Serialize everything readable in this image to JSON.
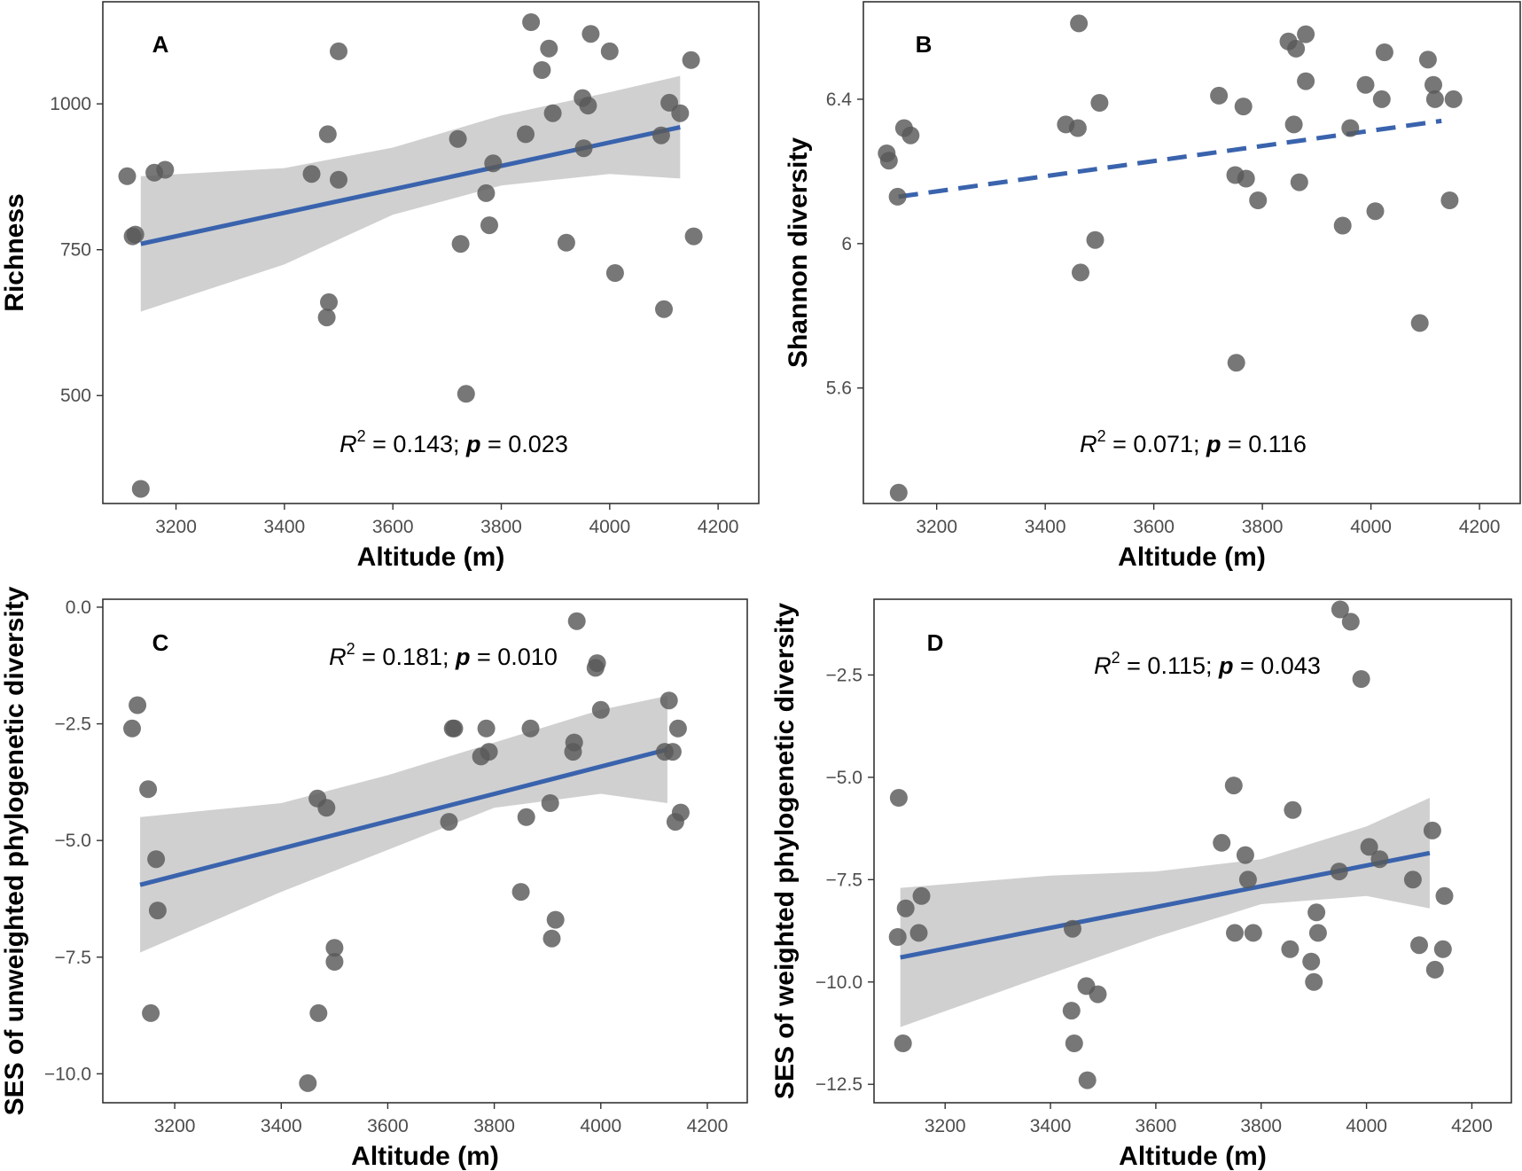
{
  "colors": {
    "point": "#595959",
    "line": "#3a63ad",
    "ribbon": "#c4c4c4",
    "frame": "#333333",
    "tick_text": "#4d4d4d"
  },
  "chart_data": [
    {
      "type": "scatter",
      "panel": "A",
      "xlabel": "Altitude (m)",
      "ylabel": "Richness",
      "xlim": [
        3065,
        4275
      ],
      "ylim": [
        315,
        1175
      ],
      "xticks": [
        3200,
        3400,
        3600,
        3800,
        4000,
        4200
      ],
      "yticks": [
        500,
        750,
        1000
      ],
      "stats": {
        "r2_label": "R",
        "r2_sup": "2",
        "r2_value": " = 0.143; ",
        "p_label": "p",
        "p_value": " = 0.023"
      },
      "trend": {
        "style": "solid",
        "x": [
          3135,
          4130
        ],
        "y": [
          760,
          960
        ]
      },
      "ribbon": {
        "x": [
          3135,
          3400,
          3600,
          3800,
          4000,
          4130
        ],
        "upper": [
          876,
          890,
          925,
          980,
          1020,
          1048
        ],
        "lower": [
          644,
          725,
          810,
          860,
          880,
          872
        ]
      },
      "points": {
        "x": [
          3110,
          3120,
          3125,
          3135,
          3160,
          3180,
          3450,
          3478,
          3480,
          3482,
          3500,
          3500,
          3720,
          3725,
          3735,
          3772,
          3778,
          3785,
          3845,
          3855,
          3875,
          3888,
          3895,
          3920,
          3950,
          3952,
          3960,
          3965,
          4000,
          4010,
          4095,
          4100,
          4110,
          4130,
          4150,
          4155
        ],
        "y": [
          876,
          773,
          776,
          340,
          882,
          887,
          880,
          634,
          948,
          660,
          1090,
          870,
          940,
          760,
          503,
          847,
          792,
          898,
          948,
          1140,
          1058,
          1095,
          984,
          762,
          1010,
          924,
          997,
          1120,
          1090,
          710,
          946,
          648,
          1002,
          984,
          1075,
          773
        ]
      }
    },
    {
      "type": "scatter",
      "panel": "B",
      "xlabel": "Altitude (m)",
      "ylabel": "Shannon diversity",
      "xlim": [
        3065,
        4275
      ],
      "ylim": [
        5.28,
        6.67
      ],
      "xticks": [
        3200,
        3400,
        3600,
        3800,
        4000,
        4200
      ],
      "yticks": [
        5.6,
        6.0,
        6.4
      ],
      "stats": {
        "r2_label": "R",
        "r2_sup": "2",
        "r2_value": " = 0.071; ",
        "p_label": "p",
        "p_value": " = 0.116"
      },
      "trend": {
        "style": "dashed",
        "x": [
          3130,
          4130
        ],
        "y": [
          6.13,
          6.34
        ]
      },
      "points": {
        "x": [
          3108,
          3112,
          3128,
          3130,
          3140,
          3152,
          3438,
          3460,
          3462,
          3465,
          3492,
          3500,
          3720,
          3750,
          3752,
          3765,
          3770,
          3792,
          3848,
          3858,
          3862,
          3868,
          3880,
          3880,
          3948,
          3962,
          3990,
          4008,
          4020,
          4025,
          4090,
          4105,
          4115,
          4118,
          4145,
          4152
        ],
        "y": [
          6.25,
          6.23,
          6.13,
          5.31,
          6.32,
          6.3,
          6.33,
          6.32,
          6.61,
          5.92,
          6.01,
          6.39,
          6.41,
          6.19,
          5.67,
          6.38,
          6.18,
          6.12,
          6.56,
          6.33,
          6.54,
          6.17,
          6.45,
          6.58,
          6.05,
          6.32,
          6.44,
          6.09,
          6.4,
          6.53,
          5.78,
          6.51,
          6.44,
          6.4,
          6.12,
          6.4
        ]
      }
    },
    {
      "type": "scatter",
      "panel": "C",
      "xlabel": "Altitude (m)",
      "ylabel": "SES of unweighted phylogenetic diversity",
      "xlim": [
        3065,
        4275
      ],
      "ylim": [
        -10.62,
        0.17
      ],
      "xticks": [
        3200,
        3400,
        3600,
        3800,
        4000,
        4200
      ],
      "yticks": [
        -10.0,
        -7.5,
        -5.0,
        -2.5,
        0.0
      ],
      "ytick_labels": [
        "−10.0",
        "−7.5",
        "−5.0",
        "−2.5",
        "0.0"
      ],
      "stats": {
        "r2_label": "R",
        "r2_sup": "2",
        "r2_value": " = 0.181; ",
        "p_label": "p",
        "p_value": " = 0.010"
      },
      "trend": {
        "style": "solid",
        "x": [
          3135,
          4125
        ],
        "y": [
          -5.95,
          -3.05
        ]
      },
      "ribbon": {
        "x": [
          3135,
          3400,
          3600,
          3800,
          4000,
          4125
        ],
        "upper": [
          -4.5,
          -4.2,
          -3.6,
          -2.9,
          -2.2,
          -1.9
        ],
        "lower": [
          -7.4,
          -6.1,
          -5.2,
          -4.3,
          -4.0,
          -4.2
        ]
      },
      "points": {
        "x": [
          3120,
          3130,
          3150,
          3155,
          3165,
          3168,
          3450,
          3468,
          3470,
          3485,
          3500,
          3500,
          3715,
          3722,
          3725,
          3775,
          3785,
          3790,
          3850,
          3860,
          3868,
          3905,
          3908,
          3915,
          3948,
          3950,
          3955,
          3990,
          3993,
          4000,
          4120,
          4128,
          4135,
          4140,
          4145,
          4150
        ],
        "y": [
          -2.6,
          -2.1,
          -3.9,
          -8.7,
          -5.4,
          -6.5,
          -10.2,
          -4.1,
          -8.7,
          -4.3,
          -7.3,
          -7.6,
          -4.6,
          -2.6,
          -2.6,
          -3.2,
          -2.6,
          -3.1,
          -6.1,
          -4.5,
          -2.6,
          -4.2,
          -7.1,
          -6.7,
          -3.1,
          -2.9,
          -0.3,
          -1.3,
          -1.2,
          -2.2,
          -3.1,
          -2.0,
          -3.1,
          -4.6,
          -2.6,
          -4.4
        ]
      }
    },
    {
      "type": "scatter",
      "panel": "D",
      "xlabel": "Altitude (m)",
      "ylabel": "SES of weighted phylogenetic diversity",
      "xlim": [
        3065,
        4275
      ],
      "ylim": [
        -12.95,
        -0.65
      ],
      "xticks": [
        3200,
        3400,
        3600,
        3800,
        4000,
        4200
      ],
      "yticks": [
        -12.5,
        -10.0,
        -7.5,
        -5.0,
        -2.5
      ],
      "ytick_labels": [
        "−12.5",
        "−10.0",
        "−7.5",
        "−5.0",
        "−2.5"
      ],
      "stats": {
        "r2_label": "R",
        "r2_sup": "2",
        "r2_value": " = 0.115; ",
        "p_label": "p",
        "p_value": " = 0.043"
      },
      "trend": {
        "style": "solid",
        "x": [
          3115,
          4120
        ],
        "y": [
          -9.4,
          -6.85
        ]
      },
      "ribbon": {
        "x": [
          3115,
          3400,
          3600,
          3800,
          4000,
          4120
        ],
        "upper": [
          -7.7,
          -7.4,
          -7.3,
          -7.0,
          -6.2,
          -5.5
        ],
        "lower": [
          -11.1,
          -9.8,
          -8.9,
          -8.1,
          -7.9,
          -8.2
        ]
      },
      "points": {
        "x": [
          3110,
          3112,
          3120,
          3125,
          3150,
          3155,
          3440,
          3442,
          3445,
          3468,
          3470,
          3490,
          3725,
          3748,
          3750,
          3770,
          3775,
          3785,
          3855,
          3860,
          3895,
          3900,
          3905,
          3908,
          3948,
          3950,
          3970,
          3990,
          4005,
          4025,
          4088,
          4100,
          4125,
          4130,
          4145,
          4148
        ],
        "y": [
          -8.9,
          -5.5,
          -11.5,
          -8.2,
          -8.8,
          -7.9,
          -10.7,
          -8.7,
          -11.5,
          -10.1,
          -12.4,
          -10.3,
          -6.6,
          -5.2,
          -8.8,
          -6.9,
          -7.5,
          -8.8,
          -9.2,
          -5.8,
          -9.5,
          -10.0,
          -8.3,
          -8.8,
          -7.3,
          -0.9,
          -1.2,
          -2.6,
          -6.7,
          -7.0,
          -7.5,
          -9.1,
          -6.3,
          -9.7,
          -9.2,
          -7.9
        ]
      }
    }
  ]
}
